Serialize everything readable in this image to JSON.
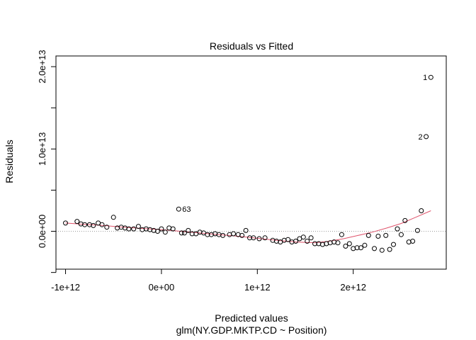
{
  "chart_data": {
    "type": "scatter",
    "title": "Residuals vs Fitted",
    "xlabel": "Predicted values",
    "subtitle": "glm(NY.GDP.MKTP.CD ~ Position)",
    "ylabel": "Residuals",
    "xlim": [
      -1100000000000.0,
      2970000000000.0
    ],
    "ylim": [
      -4600000000000.0,
      21300000000000.0
    ],
    "x_ticks": [
      {
        "value": -1000000000000.0,
        "label": "-1e+12"
      },
      {
        "value": 0,
        "label": "0e+00"
      },
      {
        "value": 1000000000000.0,
        "label": "1e+12"
      },
      {
        "value": 2000000000000.0,
        "label": "2e+12"
      }
    ],
    "y_ticks": [
      {
        "value": 0,
        "label": "0.0e+00"
      },
      {
        "value": 10000000000000.0,
        "label": "1.0e+13"
      },
      {
        "value": 20000000000000.0,
        "label": "2.0e+13"
      }
    ],
    "y_minor_ticks": [
      -5000000000000.0,
      5000000000000.0,
      15000000000000.0
    ],
    "reference_line": {
      "y": 0,
      "style": "dotted",
      "color": "#9e9e9e"
    },
    "smoother_color": "#df536b",
    "point_color": "#000000",
    "points": [
      [
        -1000000000000.0,
        1000000000000.0
      ],
      [
        -880000000000.0,
        1200000000000.0
      ],
      [
        -840000000000.0,
        900000000000.0
      ],
      [
        -800000000000.0,
        800000000000.0
      ],
      [
        -750000000000.0,
        800000000000.0
      ],
      [
        -710000000000.0,
        700000000000.0
      ],
      [
        -660000000000.0,
        1000000000000.0
      ],
      [
        -620000000000.0,
        800000000000.0
      ],
      [
        -570000000000.0,
        500000000000.0
      ],
      [
        -500000000000.0,
        1700000000000.0
      ],
      [
        -460000000000.0,
        400000000000.0
      ],
      [
        -420000000000.0,
        500000000000.0
      ],
      [
        -380000000000.0,
        400000000000.0
      ],
      [
        -340000000000.0,
        300000000000.0
      ],
      [
        -290000000000.0,
        300000000000.0
      ],
      [
        -240000000000.0,
        600000000000.0
      ],
      [
        -200000000000.0,
        200000000000.0
      ],
      [
        -160000000000.0,
        300000000000.0
      ],
      [
        -120000000000.0,
        200000000000.0
      ],
      [
        -80000000000.0,
        100000000000.0
      ],
      [
        -40000000000.0,
        0.0
      ],
      [
        0.0,
        300000000000.0
      ],
      [
        40000000000.0,
        -100000000000.0
      ],
      [
        80000000000.0,
        400000000000.0
      ],
      [
        120000000000.0,
        300000000000.0
      ],
      [
        180000000000.0,
        2700000000000.0
      ],
      [
        210000000000.0,
        -200000000000.0
      ],
      [
        240000000000.0,
        -200000000000.0
      ],
      [
        280000000000.0,
        100000000000.0
      ],
      [
        320000000000.0,
        -300000000000.0
      ],
      [
        360000000000.0,
        -300000000000.0
      ],
      [
        400000000000.0,
        -100000000000.0
      ],
      [
        440000000000.0,
        -200000000000.0
      ],
      [
        480000000000.0,
        -400000000000.0
      ],
      [
        520000000000.0,
        -400000000000.0
      ],
      [
        560000000000.0,
        -300000000000.0
      ],
      [
        600000000000.0,
        -400000000000.0
      ],
      [
        640000000000.0,
        -500000000000.0
      ],
      [
        710000000000.0,
        -400000000000.0
      ],
      [
        750000000000.0,
        -300000000000.0
      ],
      [
        800000000000.0,
        -400000000000.0
      ],
      [
        840000000000.0,
        -500000000000.0
      ],
      [
        880000000000.0,
        100000000000.0
      ],
      [
        920000000000.0,
        -800000000000.0
      ],
      [
        960000000000.0,
        -800000000000.0
      ],
      [
        1020000000000.0,
        -900000000000.0
      ],
      [
        1080000000000.0,
        -800000000000.0
      ],
      [
        1160000000000.0,
        -1100000000000.0
      ],
      [
        1200000000000.0,
        -1200000000000.0
      ],
      [
        1240000000000.0,
        -1300000000000.0
      ],
      [
        1280000000000.0,
        -1100000000000.0
      ],
      [
        1320000000000.0,
        -1000000000000.0
      ],
      [
        1360000000000.0,
        -1300000000000.0
      ],
      [
        1400000000000.0,
        -1200000000000.0
      ],
      [
        1440000000000.0,
        -900000000000.0
      ],
      [
        1480000000000.0,
        -700000000000.0
      ],
      [
        1520000000000.0,
        -1200000000000.0
      ],
      [
        1560000000000.0,
        -800000000000.0
      ],
      [
        1600000000000.0,
        -1500000000000.0
      ],
      [
        1640000000000.0,
        -1500000000000.0
      ],
      [
        1680000000000.0,
        -1600000000000.0
      ],
      [
        1720000000000.0,
        -1500000000000.0
      ],
      [
        1760000000000.0,
        -1400000000000.0
      ],
      [
        1800000000000.0,
        -1300000000000.0
      ],
      [
        1840000000000.0,
        -1400000000000.0
      ],
      [
        1880000000000.0,
        -400000000000.0
      ],
      [
        1920000000000.0,
        -1800000000000.0
      ],
      [
        1960000000000.0,
        -1500000000000.0
      ],
      [
        2000000000000.0,
        -2100000000000.0
      ],
      [
        2040000000000.0,
        -2000000000000.0
      ],
      [
        2080000000000.0,
        -2000000000000.0
      ],
      [
        2120000000000.0,
        -1700000000000.0
      ],
      [
        2160000000000.0,
        -500000000000.0
      ],
      [
        2220000000000.0,
        -2100000000000.0
      ],
      [
        2260000000000.0,
        -600000000000.0
      ],
      [
        2300000000000.0,
        -2300000000000.0
      ],
      [
        2340000000000.0,
        -500000000000.0
      ],
      [
        2380000000000.0,
        -2200000000000.0
      ],
      [
        2420000000000.0,
        -1600000000000.0
      ],
      [
        2460000000000.0,
        300000000000.0
      ],
      [
        2500000000000.0,
        -400000000000.0
      ],
      [
        2540000000000.0,
        1300000000000.0
      ],
      [
        2580000000000.0,
        -1300000000000.0
      ],
      [
        2620000000000.0,
        -1200000000000.0
      ],
      [
        2670000000000.0,
        100000000000.0
      ],
      [
        2710000000000.0,
        2500000000000.0
      ],
      [
        2760000000000.0,
        11500000000000.0
      ],
      [
        2810000000000.0,
        18700000000000.0
      ]
    ],
    "point_labels": [
      {
        "label": "1",
        "x": 2810000000000.0,
        "y": 18700000000000.0,
        "side": "left"
      },
      {
        "label": "2",
        "x": 2760000000000.0,
        "y": 11500000000000.0,
        "side": "left"
      },
      {
        "label": "63",
        "x": 180000000000.0,
        "y": 2700000000000.0,
        "side": "right"
      }
    ],
    "smoother": [
      [
        -1000000000000.0,
        1000000000000.0
      ],
      [
        -800000000000.0,
        850000000000.0
      ],
      [
        -600000000000.0,
        700000000000.0
      ],
      [
        -400000000000.0,
        500000000000.0
      ],
      [
        -200000000000.0,
        350000000000.0
      ],
      [
        0.0,
        200000000000.0
      ],
      [
        200000000000.0,
        0.0
      ],
      [
        400000000000.0,
        -200000000000.0
      ],
      [
        600000000000.0,
        -400000000000.0
      ],
      [
        800000000000.0,
        -600000000000.0
      ],
      [
        1000000000000.0,
        -850000000000.0
      ],
      [
        1200000000000.0,
        -1100000000000.0
      ],
      [
        1400000000000.0,
        -1300000000000.0
      ],
      [
        1600000000000.0,
        -1400000000000.0
      ],
      [
        1750000000000.0,
        -1200000000000.0
      ],
      [
        1900000000000.0,
        -900000000000.0
      ],
      [
        2050000000000.0,
        -500000000000.0
      ],
      [
        2200000000000.0,
        -100000000000.0
      ],
      [
        2350000000000.0,
        400000000000.0
      ],
      [
        2500000000000.0,
        950000000000.0
      ],
      [
        2650000000000.0,
        1700000000000.0
      ],
      [
        2810000000000.0,
        2500000000000.0
      ]
    ]
  }
}
